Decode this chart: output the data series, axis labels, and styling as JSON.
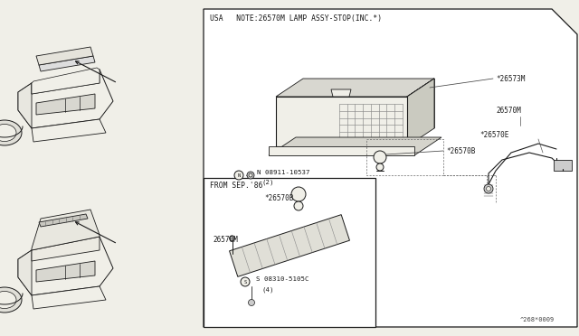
{
  "bg_color": "#f0efe8",
  "line_color": "#1a1a1a",
  "title_text": "^268*0009",
  "usa_note": "USA   NOTE:26570M LAMP ASSY-STOP(INC.*)",
  "from_sep": "FROM SEP.'86",
  "part_26573M": "*26573M",
  "part_26570B_1": "*26570B",
  "part_26570B_2": "*26570B",
  "part_08911": "N 08911-10537",
  "part_08911_qty": "(2)",
  "part_26570E": "*26570E",
  "part_26570M_1": "26570M",
  "part_26570M_2": "26570M",
  "part_08310": "S 08310-5105C",
  "part_08310_qty": "(4)"
}
